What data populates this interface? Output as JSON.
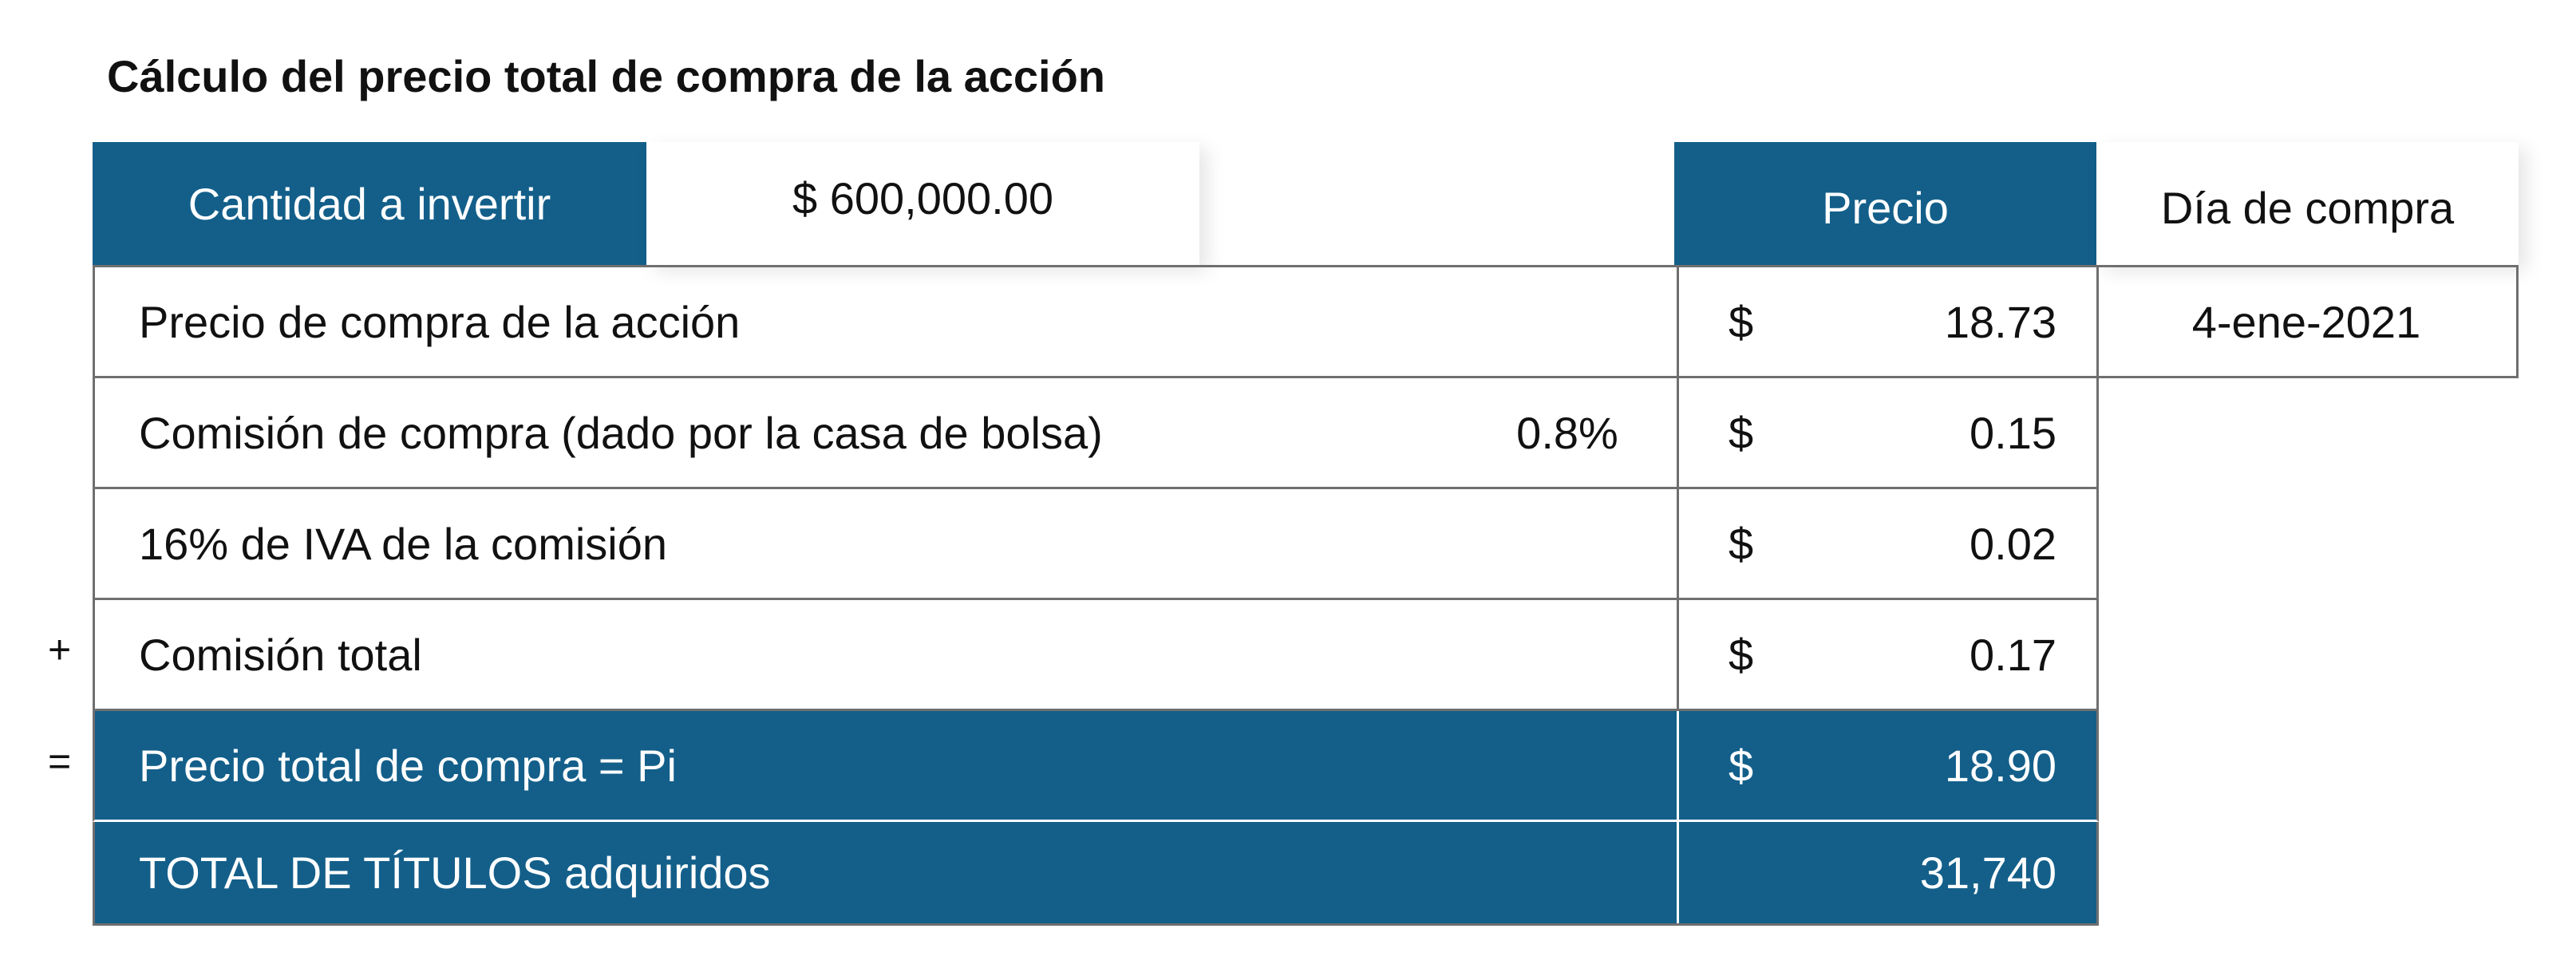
{
  "title": "Cálculo del precio total de compra de la acción",
  "header": {
    "investment_label": "Cantidad a invertir",
    "investment_value": "$ 600,000.00",
    "price_header": "Precio",
    "date_header": "Día de compra"
  },
  "rows": [
    {
      "sign": "",
      "label": "Precio de compra de la acción",
      "pct": "",
      "currency": "$",
      "value": "18.73",
      "extra": "4-ene-2021"
    },
    {
      "sign": "",
      "label": "Comisión de compra (dado por la casa de bolsa)",
      "pct": "0.8%",
      "currency": "$",
      "value": "0.15"
    },
    {
      "sign": "",
      "label": "16% de IVA de la comisión",
      "pct": "",
      "currency": "$",
      "value": "0.02"
    },
    {
      "sign": "+",
      "label": "Comisión total",
      "pct": "",
      "currency": "$",
      "value": "0.17"
    },
    {
      "sign": "=",
      "label": "Precio total de compra = Pi",
      "pct": "",
      "currency": "$",
      "value": "18.90"
    },
    {
      "sign": "",
      "label": "TOTAL DE TÍTULOS adquiridos",
      "pct": "",
      "currency": "",
      "value": "31,740"
    }
  ],
  "colors": {
    "accent": "#135f8a",
    "border": "#6f6f6f"
  }
}
